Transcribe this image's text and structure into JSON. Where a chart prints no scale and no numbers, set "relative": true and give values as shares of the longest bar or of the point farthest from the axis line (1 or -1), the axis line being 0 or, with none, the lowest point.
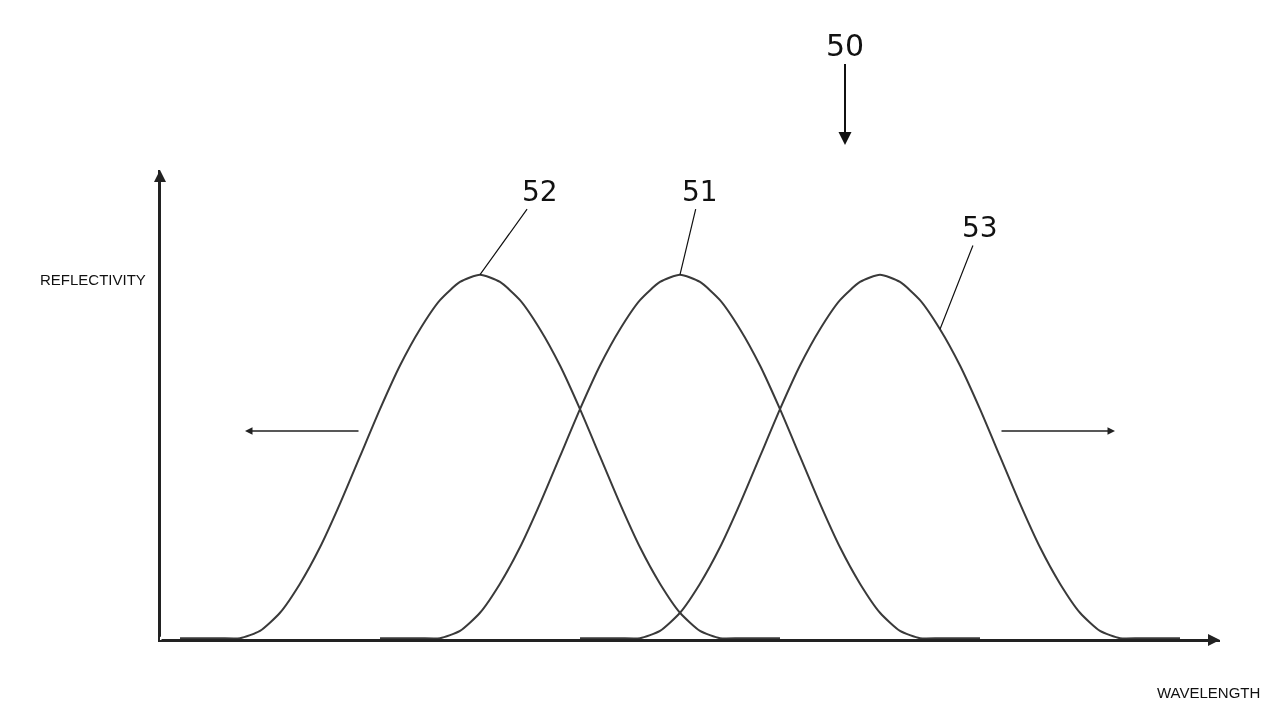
{
  "chart_data": {
    "type": "line",
    "relative": true,
    "ylabel": "REFLECTIVITY",
    "xlabel": "WAVELENGTH",
    "annotations": [
      "50",
      "52",
      "51",
      "53"
    ],
    "categories": [
      null,
      null,
      null,
      null,
      null,
      null,
      null,
      null,
      null,
      null,
      null,
      null,
      null,
      null,
      null,
      null,
      null,
      null,
      null,
      null,
      null,
      null,
      null,
      null,
      null,
      null,
      null,
      null,
      null,
      null,
      null,
      null,
      null,
      null,
      null,
      null,
      null,
      null,
      null,
      null,
      null,
      null,
      null,
      null,
      null,
      null,
      null,
      null,
      null,
      null,
      null
    ],
    "series": [
      {
        "color": "#3a3a3a",
        "values": [
          0,
          0,
          0,
          0,
          0.02,
          0.07,
          0.15,
          0.25,
          0.37,
          0.5,
          0.63,
          0.75,
          0.85,
          0.93,
          0.98,
          1,
          0.98,
          0.93,
          0.85,
          0.75,
          0.63,
          0.5,
          0.37,
          0.25,
          0.15,
          0.07,
          0.02,
          0,
          0,
          0,
          0,
          null,
          null,
          null,
          null,
          null,
          null,
          null,
          null,
          null,
          null,
          null,
          null,
          null,
          null,
          null,
          null,
          null,
          null,
          null,
          null
        ]
      },
      {
        "color": "#3a3a3a",
        "values": [
          null,
          null,
          null,
          null,
          null,
          null,
          null,
          null,
          null,
          null,
          0,
          0,
          0,
          0,
          0.02,
          0.07,
          0.15,
          0.25,
          0.37,
          0.5,
          0.63,
          0.75,
          0.85,
          0.93,
          0.98,
          1,
          0.98,
          0.93,
          0.85,
          0.75,
          0.63,
          0.5,
          0.37,
          0.25,
          0.15,
          0.07,
          0.02,
          0,
          0,
          0,
          0,
          null,
          null,
          null,
          null,
          null,
          null,
          null,
          null,
          null,
          null
        ]
      },
      {
        "color": "#3a3a3a",
        "values": [
          null,
          null,
          null,
          null,
          null,
          null,
          null,
          null,
          null,
          null,
          null,
          null,
          null,
          null,
          null,
          null,
          null,
          null,
          null,
          null,
          0,
          0,
          0,
          0,
          0.02,
          0.07,
          0.15,
          0.25,
          0.37,
          0.5,
          0.63,
          0.75,
          0.85,
          0.93,
          0.98,
          1,
          0.98,
          0.93,
          0.85,
          0.75,
          0.63,
          0.5,
          0.37,
          0.25,
          0.15,
          0.07,
          0.02,
          0,
          0,
          0,
          0
        ]
      }
    ],
    "legend": false
  }
}
